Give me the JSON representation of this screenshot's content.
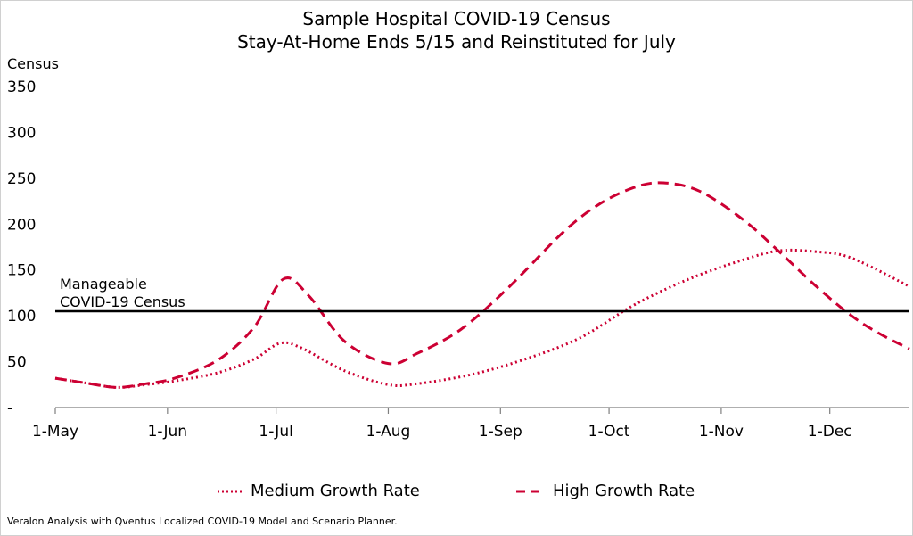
{
  "chart_data": {
    "type": "line",
    "title": "Sample Hospital COVID-19 Census",
    "subtitle": "Stay-At-Home Ends 5/15 and Reinstituted for July",
    "ylabel": "Census",
    "xlabel": "",
    "ylim": [
      0,
      350
    ],
    "y_ticks": [
      {
        "value": 0,
        "label": "-"
      },
      {
        "value": 50,
        "label": "50"
      },
      {
        "value": 100,
        "label": "100"
      },
      {
        "value": 150,
        "label": "150"
      },
      {
        "value": 200,
        "label": "200"
      },
      {
        "value": 250,
        "label": "250"
      },
      {
        "value": 300,
        "label": "300"
      },
      {
        "value": 350,
        "label": "350"
      }
    ],
    "x_range_days": [
      0,
      236
    ],
    "x_ticks": [
      {
        "day": 0,
        "label": "1-May"
      },
      {
        "day": 31,
        "label": "1-Jun"
      },
      {
        "day": 61,
        "label": "1-Jul"
      },
      {
        "day": 92,
        "label": "1-Aug"
      },
      {
        "day": 123,
        "label": "1-Sep"
      },
      {
        "day": 153,
        "label": "1-Oct"
      },
      {
        "day": 184,
        "label": "1-Nov"
      },
      {
        "day": 214,
        "label": "1-Dec"
      }
    ],
    "reference_line": {
      "value": 105,
      "label_line1": "Manageable",
      "label_line2": "COVID-19 Census"
    },
    "series": [
      {
        "name": "Medium Growth Rate",
        "style": "dotted",
        "color": "#cc0033",
        "x": [
          0,
          8,
          17,
          25,
          33,
          45,
          55,
          62,
          68,
          80,
          92,
          100,
          115,
          130,
          145,
          160,
          175,
          190,
          200,
          210,
          220,
          236
        ],
        "y": [
          32,
          27,
          22,
          25,
          29,
          38,
          53,
          70,
          65,
          40,
          25,
          26,
          36,
          53,
          76,
          112,
          140,
          161,
          171,
          170,
          163,
          132
        ]
      },
      {
        "name": "High Growth Rate",
        "style": "dashed",
        "color": "#cc0033",
        "x": [
          0,
          8,
          17,
          25,
          33,
          45,
          55,
          63,
          70,
          80,
          92,
          100,
          112,
          125,
          140,
          150,
          160,
          168,
          178,
          190,
          200,
          210,
          220,
          228,
          236
        ],
        "y": [
          32,
          27,
          22,
          26,
          32,
          52,
          88,
          140,
          122,
          72,
          48,
          59,
          85,
          130,
          190,
          221,
          240,
          245,
          236,
          205,
          170,
          133,
          100,
          80,
          64
        ]
      }
    ],
    "legend_position": "bottom"
  },
  "footer": {
    "source": "Veralon Analysis with Qventus Localized COVID-19 Model and Scenario Planner."
  }
}
